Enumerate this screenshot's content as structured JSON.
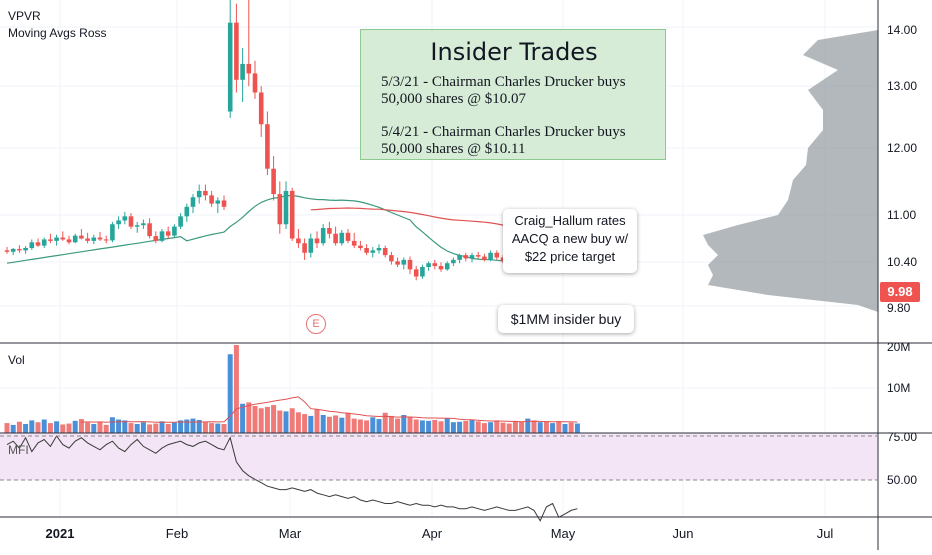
{
  "header": {
    "symbol": "VPVR",
    "indicator": "Moving Avgs Ross"
  },
  "panes": {
    "volume_label": "Vol",
    "mfi_label": "MFI"
  },
  "insider_box": {
    "title": "Insider Trades",
    "line1": "5/3/21 - Chairman Charles Drucker buys",
    "line2": "50,000 shares @ $10.07",
    "line3": "5/4/21 - Chairman Charles Drucker buys",
    "line4": "50,000 shares @ $10.11"
  },
  "callouts": {
    "rating_1": "Craig_Hallum rates",
    "rating_2": "AACQ a new buy w/",
    "rating_3": "$22 price target",
    "buy": "$1MM insider buy"
  },
  "earnings_marker": "E",
  "last_price": "9.98",
  "colors": {
    "up": "#26a69a",
    "down": "#ef5350",
    "up_vol": "#4a90d9",
    "down_vol": "#ef7a78",
    "ma_fast": "#e05252",
    "ma_slow": "#3c9a7d",
    "mfi_band": "#f3e5f5",
    "profile": "#9aa0a6"
  },
  "chart_data": [
    {
      "type": "candlestick",
      "title": "",
      "x_axis": {
        "tick_labels": [
          "2021",
          "Feb",
          "Mar",
          "Apr",
          "May",
          "Jun",
          "Jul"
        ]
      },
      "y_axis": {
        "tick_labels": [
          "14.00",
          "13.00",
          "12.00",
          "11.00",
          "10.40",
          "9.80"
        ],
        "range": [
          9.5,
          14.4
        ]
      },
      "series": [
        {
          "name": "",
          "ohlc": [
            [
              "2020-12-28",
              10.35,
              10.42,
              10.28,
              10.32
            ],
            [
              "2020-12-29",
              10.32,
              10.4,
              10.25,
              10.38
            ],
            [
              "2020-12-30",
              10.38,
              10.46,
              10.3,
              10.35
            ],
            [
              "2020-12-31",
              10.35,
              10.44,
              10.28,
              10.4
            ],
            [
              "2021-01-04",
              10.4,
              10.58,
              10.36,
              10.52
            ],
            [
              "2021-01-05",
              10.52,
              10.6,
              10.42,
              10.45
            ],
            [
              "2021-01-06",
              10.45,
              10.62,
              10.4,
              10.58
            ],
            [
              "2021-01-07",
              10.58,
              10.7,
              10.5,
              10.55
            ],
            [
              "2021-01-08",
              10.55,
              10.68,
              10.45,
              10.62
            ],
            [
              "2021-01-11",
              10.62,
              10.75,
              10.55,
              10.58
            ],
            [
              "2021-01-12",
              10.58,
              10.66,
              10.48,
              10.52
            ],
            [
              "2021-01-13",
              10.52,
              10.7,
              10.5,
              10.66
            ],
            [
              "2021-01-14",
              10.66,
              10.8,
              10.58,
              10.6
            ],
            [
              "2021-01-15",
              10.6,
              10.72,
              10.5,
              10.55
            ],
            [
              "2021-01-19",
              10.55,
              10.68,
              10.48,
              10.62
            ],
            [
              "2021-01-20",
              10.62,
              10.74,
              10.55,
              10.58
            ],
            [
              "2021-01-21",
              10.58,
              10.66,
              10.5,
              10.56
            ],
            [
              "2021-01-22",
              10.56,
              10.95,
              10.52,
              10.9
            ],
            [
              "2021-01-25",
              10.9,
              11.05,
              10.8,
              10.98
            ],
            [
              "2021-01-26",
              10.98,
              11.12,
              10.9,
              11.05
            ],
            [
              "2021-01-27",
              11.05,
              11.1,
              10.8,
              10.85
            ],
            [
              "2021-01-28",
              10.85,
              10.95,
              10.72,
              10.88
            ],
            [
              "2021-01-29",
              10.88,
              11.0,
              10.8,
              10.92
            ],
            [
              "2021-02-01",
              10.92,
              11.02,
              10.6,
              10.65
            ],
            [
              "2021-02-02",
              10.65,
              10.75,
              10.5,
              10.55
            ],
            [
              "2021-02-03",
              10.55,
              10.8,
              10.52,
              10.75
            ],
            [
              "2021-02-04",
              10.75,
              10.85,
              10.6,
              10.66
            ],
            [
              "2021-02-05",
              10.66,
              10.9,
              10.62,
              10.85
            ],
            [
              "2021-02-08",
              10.85,
              11.1,
              10.8,
              11.05
            ],
            [
              "2021-02-09",
              11.05,
              11.25,
              10.95,
              11.2
            ],
            [
              "2021-02-10",
              11.2,
              11.4,
              11.1,
              11.35
            ],
            [
              "2021-02-11",
              11.35,
              11.55,
              11.25,
              11.45
            ],
            [
              "2021-02-12",
              11.45,
              11.55,
              11.3,
              11.38
            ],
            [
              "2021-02-16",
              11.38,
              11.45,
              11.2,
              11.25
            ],
            [
              "2021-02-17",
              11.25,
              11.35,
              11.1,
              11.3
            ],
            [
              "2021-02-18",
              11.3,
              11.38,
              11.15,
              11.2
            ],
            [
              "2021-02-19",
              12.7,
              14.8,
              12.6,
              14.1
            ],
            [
              "2021-02-22",
              14.1,
              14.4,
              13.0,
              13.2
            ],
            [
              "2021-02-23",
              13.2,
              13.7,
              12.85,
              13.45
            ],
            [
              "2021-02-24",
              13.45,
              14.6,
              13.1,
              13.3
            ],
            [
              "2021-02-25",
              13.3,
              13.5,
              12.9,
              13.0
            ],
            [
              "2021-02-26",
              13.0,
              13.1,
              12.3,
              12.5
            ],
            [
              "2021-03-01",
              12.5,
              12.7,
              11.7,
              11.8
            ],
            [
              "2021-03-02",
              11.8,
              12.0,
              11.3,
              11.4
            ],
            [
              "2021-03-03",
              11.4,
              11.6,
              10.7,
              10.9
            ],
            [
              "2021-03-04",
              10.9,
              11.6,
              10.8,
              11.45
            ],
            [
              "2021-03-05",
              11.45,
              11.5,
              10.55,
              10.6
            ],
            [
              "2021-03-08",
              10.6,
              10.8,
              10.4,
              10.5
            ],
            [
              "2021-03-09",
              10.5,
              10.6,
              10.15,
              10.3
            ],
            [
              "2021-03-10",
              10.3,
              10.7,
              10.2,
              10.6
            ],
            [
              "2021-03-11",
              10.6,
              10.75,
              10.4,
              10.5
            ],
            [
              "2021-03-12",
              10.5,
              10.9,
              10.45,
              10.82
            ],
            [
              "2021-03-15",
              10.82,
              10.95,
              10.6,
              10.7
            ],
            [
              "2021-03-16",
              10.7,
              10.85,
              10.45,
              10.5
            ],
            [
              "2021-03-17",
              10.5,
              10.78,
              10.45,
              10.72
            ],
            [
              "2021-03-18",
              10.72,
              10.8,
              10.5,
              10.55
            ],
            [
              "2021-03-19",
              10.55,
              10.72,
              10.4,
              10.45
            ],
            [
              "2021-03-22",
              10.45,
              10.55,
              10.35,
              10.4
            ],
            [
              "2021-03-23",
              10.4,
              10.48,
              10.25,
              10.3
            ],
            [
              "2021-03-24",
              10.3,
              10.42,
              10.2,
              10.35
            ],
            [
              "2021-03-25",
              10.35,
              10.48,
              10.28,
              10.4
            ],
            [
              "2021-03-26",
              10.4,
              10.45,
              10.2,
              10.25
            ],
            [
              "2021-03-29",
              10.25,
              10.32,
              10.05,
              10.12
            ],
            [
              "2021-03-30",
              10.12,
              10.2,
              10.0,
              10.05
            ],
            [
              "2021-03-31",
              10.05,
              10.2,
              9.95,
              10.15
            ],
            [
              "2021-04-01",
              10.15,
              10.22,
              9.85,
              9.95
            ],
            [
              "2021-04-05",
              9.95,
              10.02,
              9.72,
              9.8
            ],
            [
              "2021-04-06",
              9.8,
              10.05,
              9.75,
              10.0
            ],
            [
              "2021-04-07",
              10.0,
              10.12,
              9.92,
              10.08
            ],
            [
              "2021-04-08",
              10.08,
              10.15,
              9.95,
              10.02
            ],
            [
              "2021-04-09",
              10.02,
              10.1,
              9.9,
              9.95
            ],
            [
              "2021-04-12",
              9.95,
              10.12,
              9.92,
              10.08
            ],
            [
              "2021-04-13",
              10.08,
              10.2,
              10.02,
              10.15
            ],
            [
              "2021-04-14",
              10.15,
              10.28,
              10.08,
              10.25
            ],
            [
              "2021-04-15",
              10.25,
              10.3,
              10.12,
              10.18
            ],
            [
              "2021-04-16",
              10.18,
              10.3,
              10.1,
              10.25
            ],
            [
              "2021-04-19",
              10.25,
              10.32,
              10.18,
              10.22
            ],
            [
              "2021-04-20",
              10.22,
              10.28,
              10.12,
              10.15
            ],
            [
              "2021-04-21",
              10.15,
              10.35,
              10.12,
              10.3
            ],
            [
              "2021-04-22",
              10.3,
              10.35,
              10.15,
              10.2
            ],
            [
              "2021-04-23",
              10.2,
              10.25,
              10.08,
              10.12
            ],
            [
              "2021-04-26",
              10.12,
              10.18,
              10.0,
              10.05
            ],
            [
              "2021-04-27",
              10.05,
              10.1,
              9.95,
              10.0
            ],
            [
              "2021-04-28",
              10.0,
              10.08,
              9.92,
              9.96
            ],
            [
              "2021-04-29",
              9.96,
              10.05,
              9.9,
              10.0
            ],
            [
              "2021-04-30",
              10.0,
              10.08,
              9.92,
              9.98
            ],
            [
              "2021-05-03",
              9.98,
              10.1,
              9.95,
              10.05
            ],
            [
              "2021-05-04",
              10.05,
              10.12,
              9.98,
              10.02
            ],
            [
              "2021-05-05",
              10.02,
              10.15,
              9.96,
              10.1
            ],
            [
              "2021-05-06",
              10.1,
              10.14,
              10.0,
              10.04
            ],
            [
              "2021-05-07",
              10.04,
              10.1,
              9.98,
              10.06
            ],
            [
              "2021-05-10",
              10.06,
              10.12,
              9.96,
              10.0
            ],
            [
              "2021-05-11",
              10.0,
              10.1,
              9.9,
              10.05
            ],
            [
              "2021-05-12",
              10.05,
              10.1,
              9.98,
              10.02
            ],
            [
              "2021-05-13",
              10.02,
              10.06,
              9.95,
              9.98
            ]
          ]
        }
      ]
    },
    {
      "type": "bar",
      "title": "",
      "y_axis": {
        "tick_labels": [
          "20M",
          "10M"
        ]
      },
      "series": [
        {
          "name": "",
          "values_millions": [
            2.2,
            1.8,
            2.5,
            2.0,
            2.8,
            2.4,
            3.0,
            2.2,
            2.6,
            1.9,
            2.1,
            2.7,
            3.1,
            2.3,
            2.0,
            2.5,
            1.8,
            3.5,
            3.0,
            2.8,
            2.2,
            2.0,
            2.4,
            1.9,
            2.1,
            2.6,
            2.0,
            2.3,
            2.8,
            3.0,
            3.2,
            2.9,
            2.4,
            2.2,
            2.1,
            2.0,
            17.5,
            22.0,
            6.5,
            6.8,
            6.0,
            5.5,
            5.8,
            6.2,
            5.0,
            4.8,
            5.5,
            4.6,
            4.2,
            3.8,
            5.2,
            4.0,
            3.6,
            3.9,
            3.4,
            4.5,
            3.2,
            3.0,
            2.8,
            3.5,
            3.1,
            4.5,
            3.8,
            3.2,
            4.0,
            3.6,
            3.0,
            2.8,
            2.7,
            2.9,
            2.6,
            3.3,
            2.4,
            2.5,
            2.7,
            3.0,
            2.6,
            2.2,
            2.4,
            2.8,
            2.3,
            2.1,
            2.6,
            2.5,
            3.2,
            2.8,
            2.4,
            2.6,
            2.2,
            2.5,
            2.0,
            2.3,
            2.1
          ]
        }
      ]
    },
    {
      "type": "line",
      "title": "",
      "y_axis": {
        "tick_labels": [
          "75.00",
          "50.00"
        ],
        "range": [
          20,
          80
        ]
      },
      "series": [
        {
          "name": "MFI",
          "values": [
            70,
            72,
            68,
            74,
            66,
            71,
            73,
            69,
            75,
            70,
            68,
            72,
            74,
            71,
            69,
            67,
            70,
            72,
            68,
            66,
            70,
            73,
            69,
            67,
            65,
            68,
            70,
            71,
            72,
            70,
            69,
            71,
            72,
            70,
            68,
            67,
            74,
            60,
            55,
            52,
            50,
            48,
            46,
            45,
            44,
            44,
            45,
            44,
            43,
            44,
            42,
            41,
            40,
            41,
            40,
            39,
            40,
            38,
            37,
            38,
            37,
            36,
            36,
            37,
            36,
            35,
            36,
            35,
            35,
            34,
            35,
            34,
            34,
            33,
            33,
            34,
            33,
            32,
            33,
            34,
            33,
            32,
            32,
            33,
            34,
            32,
            26,
            34,
            36,
            28,
            30,
            32,
            33
          ]
        }
      ]
    }
  ]
}
